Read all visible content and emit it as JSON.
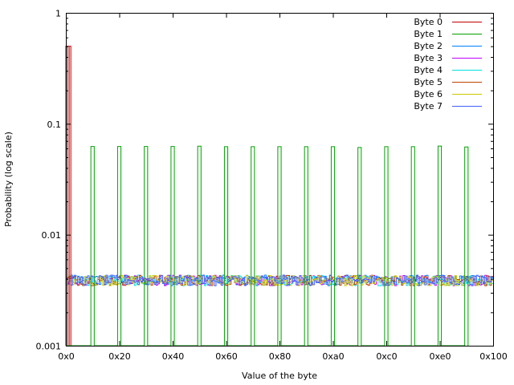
{
  "chart_data": {
    "type": "line",
    "style": "step",
    "title": "",
    "xlabel": "Value of the byte",
    "ylabel": "Probability (log scale)",
    "x_scale": "linear",
    "y_scale": "log",
    "xlim": [
      0,
      256
    ],
    "ylim": [
      0.001,
      1
    ],
    "grid": false,
    "legend_position": "top-right",
    "x_ticks": [
      {
        "value": 0,
        "label": "0x0"
      },
      {
        "value": 32,
        "label": "0x20"
      },
      {
        "value": 64,
        "label": "0x40"
      },
      {
        "value": 96,
        "label": "0x60"
      },
      {
        "value": 128,
        "label": "0x80"
      },
      {
        "value": 160,
        "label": "0xa0"
      },
      {
        "value": 192,
        "label": "0xc0"
      },
      {
        "value": 224,
        "label": "0xe0"
      },
      {
        "value": 256,
        "label": "0x100"
      }
    ],
    "y_ticks": [
      {
        "value": 0.001,
        "label": "0.001"
      },
      {
        "value": 0.01,
        "label": "0.01"
      },
      {
        "value": 0.1,
        "label": "0.1"
      },
      {
        "value": 1,
        "label": "1"
      }
    ],
    "series": [
      {
        "name": "Byte 0",
        "color": "#c00000",
        "pattern": "spikes",
        "spikes": [
          {
            "x": 1,
            "y": 0.5
          },
          {
            "x": 2,
            "y": 0.5
          }
        ],
        "baseline": 0.001
      },
      {
        "name": "Byte 1",
        "color": "#00a000",
        "pattern": "spikes",
        "spikes": [
          {
            "x": 16,
            "y": 0.0625
          },
          {
            "x": 32,
            "y": 0.0625
          },
          {
            "x": 48,
            "y": 0.0625
          },
          {
            "x": 64,
            "y": 0.0625
          },
          {
            "x": 80,
            "y": 0.0628
          },
          {
            "x": 96,
            "y": 0.0622
          },
          {
            "x": 112,
            "y": 0.0622
          },
          {
            "x": 128,
            "y": 0.0622
          },
          {
            "x": 144,
            "y": 0.0622
          },
          {
            "x": 160,
            "y": 0.0622
          },
          {
            "x": 176,
            "y": 0.0612
          },
          {
            "x": 192,
            "y": 0.0622
          },
          {
            "x": 208,
            "y": 0.0622
          },
          {
            "x": 224,
            "y": 0.063
          },
          {
            "x": 240,
            "y": 0.0618
          }
        ],
        "baseline": 0.001
      },
      {
        "name": "Byte 2",
        "color": "#0080ff",
        "pattern": "uniform",
        "level": 0.0039
      },
      {
        "name": "Byte 3",
        "color": "#c000ff",
        "pattern": "uniform",
        "level": 0.0039
      },
      {
        "name": "Byte 4",
        "color": "#00e0e0",
        "pattern": "uniform",
        "level": 0.0039
      },
      {
        "name": "Byte 5",
        "color": "#c04000",
        "pattern": "uniform",
        "level": 0.0039
      },
      {
        "name": "Byte 6",
        "color": "#c8c800",
        "pattern": "uniform",
        "level": 0.0039
      },
      {
        "name": "Byte 7",
        "color": "#4060ff",
        "pattern": "uniform",
        "level": 0.0039
      }
    ]
  }
}
